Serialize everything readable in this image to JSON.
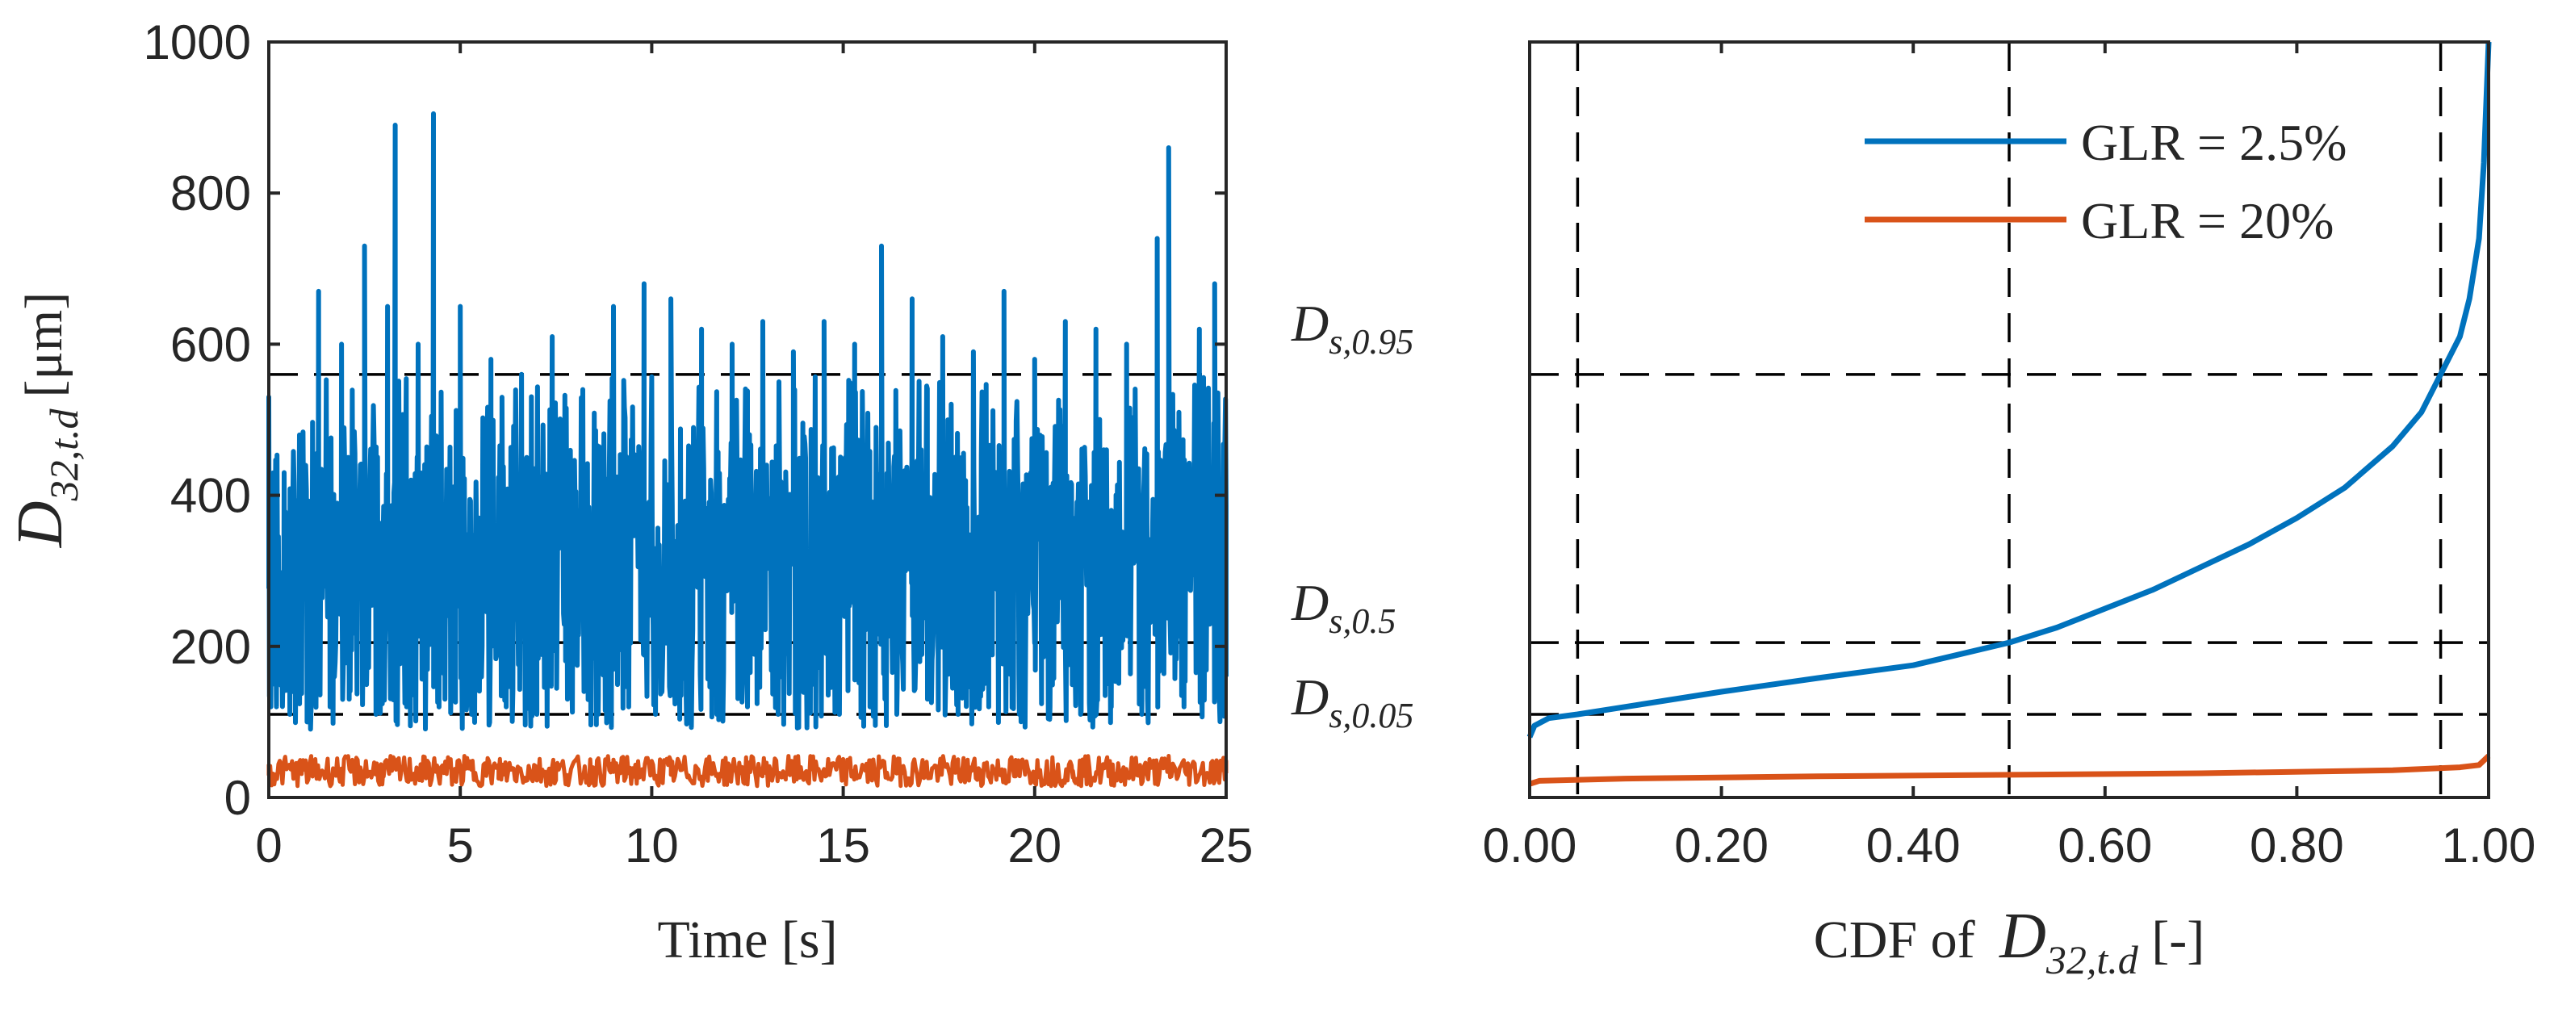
{
  "colors": {
    "blue": "#0072BD",
    "orange": "#D95319",
    "axis": "#262626"
  },
  "chart_data": [
    {
      "type": "line",
      "title": "",
      "xlabel": "Time [s]",
      "ylabel": {
        "symbol": "D",
        "subscript": "32,t.d",
        "unit": "[μm]"
      },
      "xlim": [
        0,
        25
      ],
      "ylim": [
        0,
        1000
      ],
      "xticks": [
        "0",
        "5",
        "10",
        "15",
        "20",
        "25"
      ],
      "yticks": [
        "0",
        "200",
        "400",
        "600",
        "800",
        "1000"
      ],
      "reference_lines_y": [
        110,
        205,
        560
      ],
      "series": [
        {
          "name": "GLR = 2.5%",
          "color": "#0072BD",
          "x": [
            0,
            0.2,
            0.4,
            0.55,
            0.8,
            1.0,
            1.3,
            1.6,
            1.9,
            2.1,
            2.5,
            2.8,
            3.1,
            3.3,
            3.6,
            3.9,
            4.3,
            4.6,
            5.0,
            5.3,
            5.8,
            6.2,
            6.6,
            7.0,
            7.4,
            7.8,
            8.2,
            8.6,
            9.0,
            9.4,
            9.8,
            10.1,
            10.5,
            10.9,
            11.3,
            11.7,
            12.1,
            12.5,
            12.9,
            13.3,
            13.7,
            14.1,
            14.5,
            14.9,
            15.3,
            15.7,
            16.0,
            16.4,
            16.8,
            17.2,
            17.6,
            18.0,
            18.4,
            18.8,
            19.2,
            19.6,
            20.0,
            20.4,
            20.8,
            21.2,
            21.6,
            22.0,
            22.4,
            22.8,
            23.2,
            23.5,
            23.9,
            24.3,
            24.7,
            25.0
          ],
          "y": [
            530,
            120,
            430,
            110,
            480,
            100,
            670,
            120,
            600,
            130,
            730,
            110,
            650,
            890,
            120,
            600,
            905,
            130,
            650,
            110,
            580,
            120,
            560,
            110,
            610,
            130,
            540,
            110,
            650,
            120,
            680,
            110,
            660,
            130,
            620,
            110,
            600,
            120,
            630,
            110,
            590,
            120,
            630,
            110,
            600,
            120,
            730,
            110,
            660,
            130,
            610,
            110,
            590,
            120,
            670,
            110,
            580,
            120,
            630,
            110,
            620,
            120,
            600,
            110,
            740,
            860,
            120,
            620,
            680,
            160
          ]
        },
        {
          "name": "GLR = 20%",
          "color": "#D95319",
          "x": [
            0,
            1.5,
            3,
            4.5,
            6,
            7.5,
            9,
            10.5,
            12,
            13.5,
            15,
            16.5,
            18,
            19.5,
            21,
            22.5,
            23.5,
            25
          ],
          "y": [
            30,
            35,
            28,
            40,
            25,
            32,
            50,
            30,
            45,
            28,
            38,
            30,
            42,
            28,
            35,
            30,
            55,
            32
          ]
        }
      ],
      "noise": [
        {
          "series": "GLR = 2.5%",
          "min": 90,
          "max": 470
        },
        {
          "series": "GLR = 20%",
          "min": 15,
          "max": 55
        }
      ]
    },
    {
      "type": "line",
      "title": "",
      "xlabel": {
        "prefix": "CDF of ",
        "symbol": "D",
        "subscript": "32,t.d",
        "suffix": " [-]"
      },
      "xlim": [
        0,
        1
      ],
      "ylim": [
        0,
        1000
      ],
      "xticks": [
        "0.00",
        "0.20",
        "0.40",
        "0.60",
        "0.80",
        "1.00"
      ],
      "reference_lines_x": [
        0.05,
        0.5,
        0.95
      ],
      "reference_lines_y": [
        110,
        205,
        560
      ],
      "ylabels": [
        {
          "symbol": "D",
          "subscript": "s,0.95",
          "value": 560
        },
        {
          "symbol": "D",
          "subscript": "s,0.5",
          "value": 205
        },
        {
          "symbol": "D",
          "subscript": "s,0.05",
          "value": 110
        }
      ],
      "legend_position": "top-right",
      "series": [
        {
          "name": "GLR = 2.5%",
          "color": "#0072BD",
          "x": [
            0,
            0.005,
            0.02,
            0.05,
            0.1,
            0.2,
            0.3,
            0.4,
            0.45,
            0.5,
            0.55,
            0.6,
            0.65,
            0.7,
            0.75,
            0.8,
            0.85,
            0.9,
            0.93,
            0.95,
            0.97,
            0.98,
            0.99,
            0.995,
            1.0
          ],
          "y": [
            80,
            95,
            105,
            110,
            120,
            140,
            158,
            175,
            190,
            205,
            225,
            250,
            275,
            305,
            335,
            370,
            410,
            465,
            510,
            560,
            610,
            660,
            740,
            840,
            1000
          ]
        },
        {
          "name": "GLR = 20%",
          "color": "#D95319",
          "x": [
            0,
            0.01,
            0.1,
            0.3,
            0.5,
            0.7,
            0.9,
            0.97,
            0.99,
            1.0
          ],
          "y": [
            18,
            22,
            25,
            28,
            30,
            32,
            36,
            40,
            43,
            55
          ]
        }
      ]
    }
  ]
}
